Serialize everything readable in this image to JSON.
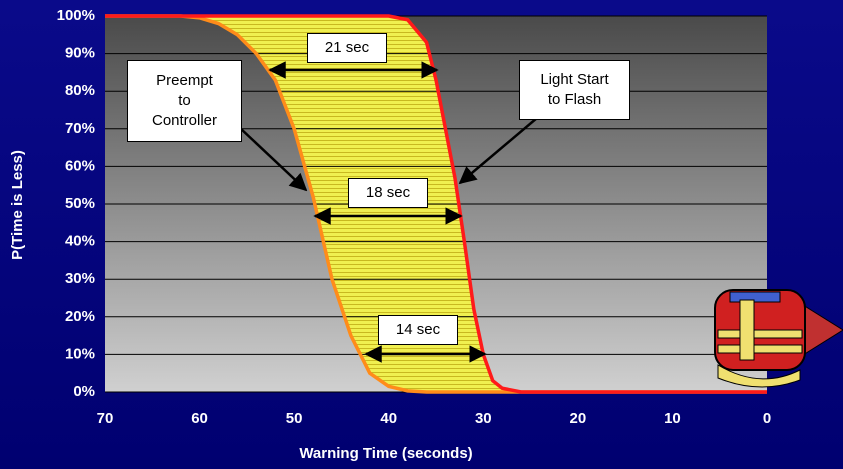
{
  "chart_data": {
    "type": "line",
    "xlabel": "Warning Time (seconds)",
    "ylabel": "P(Time is Less)",
    "xlim": [
      70,
      0
    ],
    "xticks": [
      70,
      60,
      50,
      40,
      30,
      20,
      10,
      0
    ],
    "ylim": [
      0,
      100
    ],
    "yticks": [
      {
        "value": 0,
        "label": "0%"
      },
      {
        "value": 10,
        "label": "10%"
      },
      {
        "value": 20,
        "label": "20%"
      },
      {
        "value": 30,
        "label": "30%"
      },
      {
        "value": 40,
        "label": "40%"
      },
      {
        "value": 50,
        "label": "50%"
      },
      {
        "value": 60,
        "label": "60%"
      },
      {
        "value": 70,
        "label": "70%"
      },
      {
        "value": 80,
        "label": "80%"
      },
      {
        "value": 90,
        "label": "90%"
      },
      {
        "value": 100,
        "label": "100%"
      }
    ],
    "grid": true,
    "fill_between": "#f0f050",
    "series": [
      {
        "name": "Preempt\nto\nController",
        "color": "#ff8c1a",
        "x": [
          70,
          62,
          60,
          58,
          56,
          54,
          52,
          50,
          48,
          46,
          44,
          42,
          40,
          38,
          36,
          30,
          0
        ],
        "values": [
          100,
          100,
          99.5,
          98,
          95,
          90,
          83,
          70,
          52,
          30,
          15,
          5,
          1.5,
          0.3,
          0,
          0,
          0
        ]
      },
      {
        "name": "Light Start\nto Flash",
        "color": "#ff1a1a",
        "x": [
          70,
          40,
          38,
          36,
          35,
          34,
          33,
          32,
          31,
          30,
          29,
          28,
          26,
          20,
          0
        ],
        "values": [
          100,
          100,
          99,
          93,
          83,
          70,
          57,
          40,
          22,
          10,
          3,
          1,
          0,
          0,
          0
        ]
      }
    ],
    "annotations": [
      "21 sec",
      "18 sec",
      "14 sec"
    ]
  }
}
